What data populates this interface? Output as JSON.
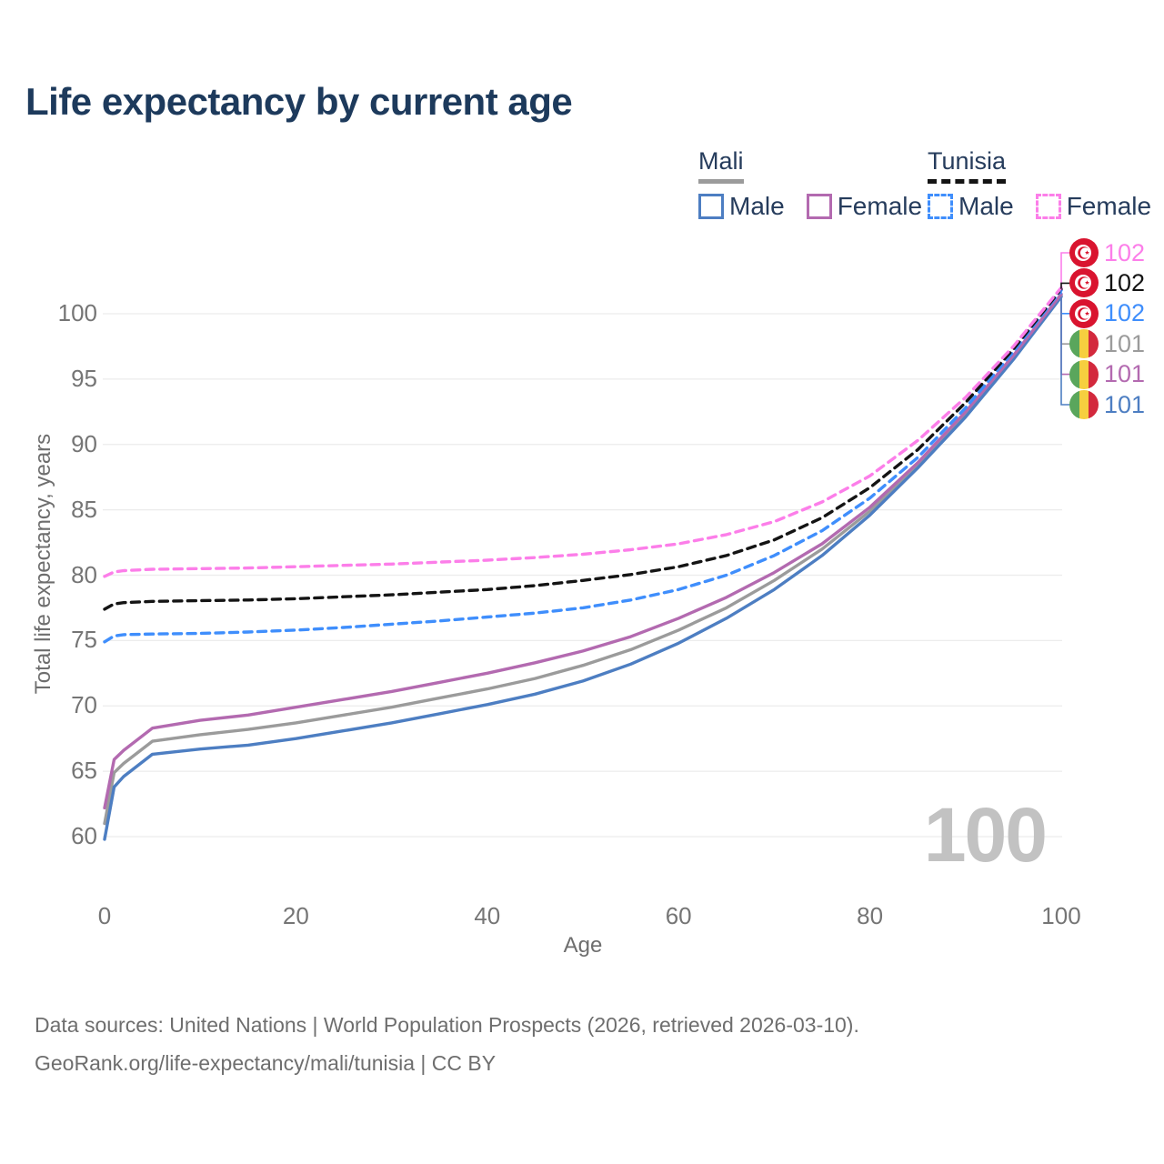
{
  "title": "Life expectancy by current age",
  "legend": {
    "groups": [
      {
        "name": "Mali",
        "line_style": "solid",
        "underline_color": "#9b9b9b",
        "items": [
          {
            "label": "Male",
            "color": "#4d7ec2",
            "dashed": false
          },
          {
            "label": "Female",
            "color": "#b36ab0",
            "dashed": false
          }
        ]
      },
      {
        "name": "Tunisia",
        "line_style": "dashed",
        "underline_color": "#141414",
        "items": [
          {
            "label": "Male",
            "color": "#3f8efc",
            "dashed": true
          },
          {
            "label": "Female",
            "color": "#fc7ee9",
            "dashed": true
          }
        ]
      }
    ]
  },
  "end_labels": [
    {
      "series": "tunisia_female",
      "value": "102",
      "flag": "Tunisia"
    },
    {
      "series": "tunisia_total",
      "value": "102",
      "flag": "Tunisia"
    },
    {
      "series": "tunisia_male",
      "value": "102",
      "flag": "Tunisia"
    },
    {
      "series": "mali_total",
      "value": "101",
      "flag": "Mali"
    },
    {
      "series": "mali_female",
      "value": "101",
      "flag": "Mali"
    },
    {
      "series": "mali_male",
      "value": "101",
      "flag": "Mali"
    }
  ],
  "watermark": "100",
  "footer": {
    "line1": "Data sources: United Nations | World Population Prospects (2026, retrieved 2026-03-10).",
    "line2": "GeoRank.org/life-expectancy/mali/tunisia | CC BY"
  },
  "flag_colors": {
    "tunisia_red": "#d9142f",
    "mali_green": "#5aa65c",
    "mali_yellow": "#f6cf3f",
    "mali_red": "#d3293d"
  },
  "chart_data": {
    "type": "line",
    "title": "Life expectancy by current age",
    "xlabel": "Age",
    "ylabel": "Total life expectancy, years",
    "xlim": [
      0,
      100
    ],
    "ylim": [
      58,
      104
    ],
    "xticks": [
      0,
      20,
      40,
      60,
      80,
      100
    ],
    "yticks": [
      60,
      65,
      70,
      75,
      80,
      85,
      90,
      95,
      100
    ],
    "grid": "horizontal",
    "gridline_color": "#ececec",
    "legend_position": "top-right",
    "x": [
      0,
      1,
      2,
      5,
      10,
      15,
      20,
      25,
      30,
      35,
      40,
      45,
      50,
      55,
      60,
      65,
      70,
      75,
      80,
      85,
      90,
      95,
      100
    ],
    "series": [
      {
        "id": "mali_total",
        "country": "Mali",
        "sex": "Both",
        "color": "#9b9b9b",
        "dashed": false,
        "values": [
          61.0,
          64.9,
          65.6,
          67.3,
          67.8,
          68.2,
          68.7,
          69.3,
          69.9,
          70.6,
          71.3,
          72.1,
          73.1,
          74.3,
          75.8,
          77.5,
          79.6,
          82.0,
          84.9,
          88.4,
          92.3,
          96.7,
          101.4
        ]
      },
      {
        "id": "mali_male",
        "country": "Mali",
        "sex": "Male",
        "color": "#4d7ec2",
        "dashed": false,
        "values": [
          59.8,
          63.8,
          64.6,
          66.3,
          66.7,
          67.0,
          67.5,
          68.1,
          68.7,
          69.4,
          70.1,
          70.9,
          71.9,
          73.2,
          74.8,
          76.7,
          78.9,
          81.5,
          84.6,
          88.2,
          92.1,
          96.5,
          101.3
        ]
      },
      {
        "id": "mali_female",
        "country": "Mali",
        "sex": "Female",
        "color": "#b36ab0",
        "dashed": false,
        "values": [
          62.2,
          65.9,
          66.6,
          68.3,
          68.9,
          69.3,
          69.9,
          70.5,
          71.1,
          71.8,
          72.5,
          73.3,
          74.2,
          75.3,
          76.7,
          78.3,
          80.2,
          82.4,
          85.2,
          88.6,
          92.5,
          96.8,
          101.5
        ]
      },
      {
        "id": "tunisia_male",
        "country": "Tunisia",
        "sex": "Male",
        "color": "#3f8efc",
        "dashed": true,
        "values": [
          74.9,
          75.35,
          75.45,
          75.5,
          75.55,
          75.65,
          75.8,
          76.0,
          76.25,
          76.5,
          76.8,
          77.1,
          77.5,
          78.1,
          78.9,
          80.0,
          81.5,
          83.4,
          85.9,
          89.0,
          92.8,
          97.1,
          101.8
        ]
      },
      {
        "id": "tunisia_total",
        "country": "Tunisia",
        "sex": "Both",
        "color": "#141414",
        "dashed": true,
        "values": [
          77.4,
          77.8,
          77.9,
          78.0,
          78.05,
          78.1,
          78.2,
          78.35,
          78.5,
          78.7,
          78.9,
          79.2,
          79.6,
          80.05,
          80.65,
          81.5,
          82.7,
          84.4,
          86.7,
          89.6,
          93.2,
          97.3,
          101.9
        ]
      },
      {
        "id": "tunisia_female",
        "country": "Tunisia",
        "sex": "Female",
        "color": "#fc7ee9",
        "dashed": true,
        "values": [
          79.9,
          80.25,
          80.35,
          80.45,
          80.5,
          80.55,
          80.65,
          80.75,
          80.85,
          81.0,
          81.15,
          81.35,
          81.6,
          81.95,
          82.4,
          83.1,
          84.1,
          85.6,
          87.6,
          90.3,
          93.6,
          97.5,
          102.0
        ]
      }
    ]
  }
}
